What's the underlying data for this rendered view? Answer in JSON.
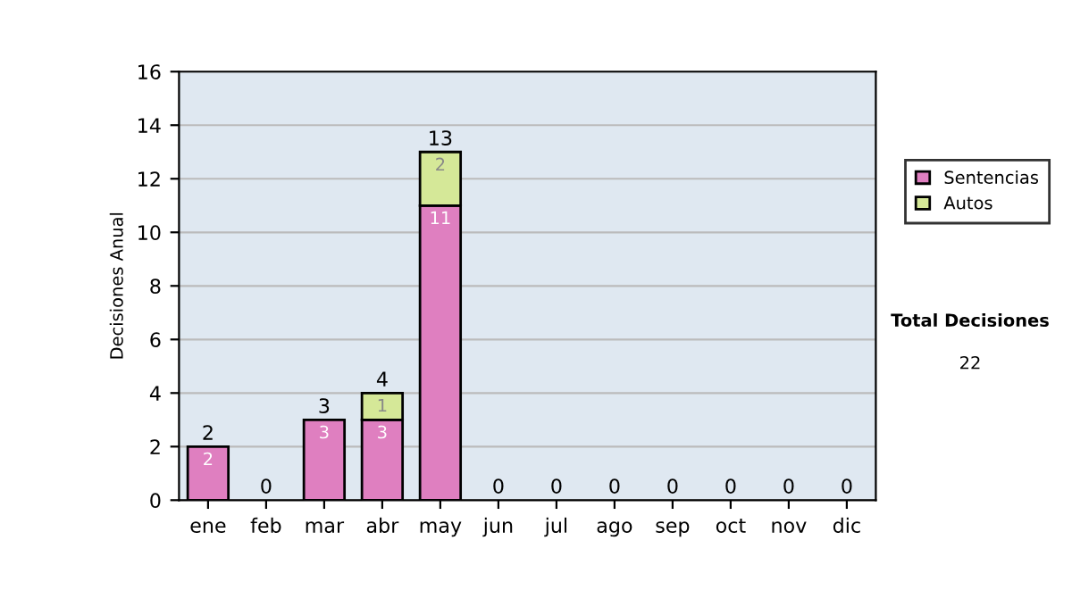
{
  "chart_data": {
    "type": "bar",
    "stacked": true,
    "ylabel": "Decisiones Anual",
    "categories": [
      "ene",
      "feb",
      "mar",
      "abr",
      "may",
      "jun",
      "jul",
      "ago",
      "sep",
      "oct",
      "nov",
      "dic"
    ],
    "series": [
      {
        "name": "Sentencias",
        "color": "#df7fc0",
        "values": [
          2,
          0,
          3,
          3,
          11,
          0,
          0,
          0,
          0,
          0,
          0,
          0
        ],
        "value_labels": [
          "2",
          null,
          "3",
          "3",
          "11",
          null,
          null,
          null,
          null,
          null,
          null,
          null
        ]
      },
      {
        "name": "Autos",
        "color": "#d5e898",
        "values": [
          0,
          0,
          0,
          1,
          2,
          0,
          0,
          0,
          0,
          0,
          0,
          0
        ],
        "value_labels": [
          null,
          null,
          null,
          "1",
          "2",
          null,
          null,
          null,
          null,
          null,
          null,
          null
        ]
      }
    ],
    "totals": [
      "2",
      "0",
      "3",
      "4",
      "13",
      "0",
      "0",
      "0",
      "0",
      "0",
      "0",
      "0"
    ],
    "ylim": [
      0,
      16
    ],
    "yticks": [
      0,
      2,
      4,
      6,
      8,
      10,
      12,
      14,
      16
    ],
    "grid": "y",
    "legend": "right",
    "annotations": [
      "Total Decisiones",
      "22"
    ]
  }
}
